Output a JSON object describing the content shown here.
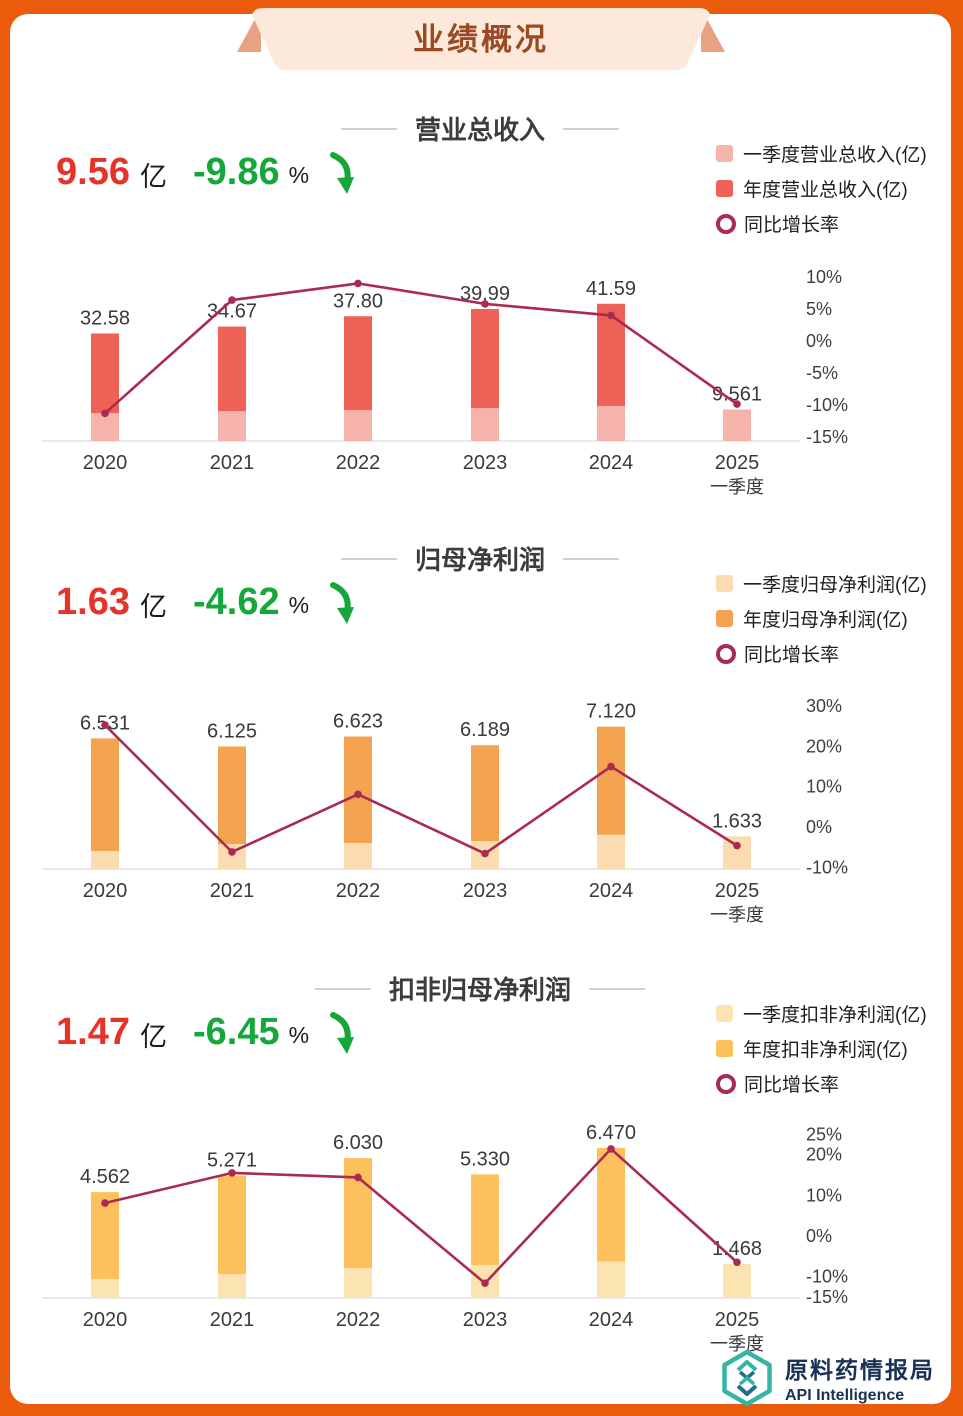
{
  "header": {
    "title": "业绩概况"
  },
  "charts": [
    {
      "title": "营业总收入",
      "stat": {
        "value": "9.56",
        "unit": "亿",
        "change": "-9.86",
        "percent_sign": "%",
        "direction": "down"
      },
      "legend": [
        {
          "label": "一季度营业总收入(亿)",
          "swatch": "#F6B3AB",
          "type": "square"
        },
        {
          "label": "年度营业总收入(亿)",
          "swatch": "#EE6156",
          "type": "square"
        },
        {
          "label": "同比增长率",
          "swatch": "#A92B52",
          "type": "circle"
        }
      ]
    },
    {
      "title": "归母净利润",
      "stat": {
        "value": "1.63",
        "unit": "亿",
        "change": "-4.62",
        "percent_sign": "%",
        "direction": "down"
      },
      "legend": [
        {
          "label": "一季度归母净利润(亿)",
          "swatch": "#FBDCB0",
          "type": "square"
        },
        {
          "label": "年度归母净利润(亿)",
          "swatch": "#F4A450",
          "type": "square"
        },
        {
          "label": "同比增长率",
          "swatch": "#A92B52",
          "type": "circle"
        }
      ]
    },
    {
      "title": "扣非归母净利润",
      "stat": {
        "value": "1.47",
        "unit": "亿",
        "change": "-6.45",
        "percent_sign": "%",
        "direction": "down"
      },
      "legend": [
        {
          "label": "一季度扣非净利润(亿)",
          "swatch": "#FCE3B2",
          "type": "square"
        },
        {
          "label": "年度扣非净利润(亿)",
          "swatch": "#FCC15C",
          "type": "square"
        },
        {
          "label": "同比增长率",
          "swatch": "#A92B52",
          "type": "circle"
        }
      ]
    }
  ],
  "chart_data": [
    {
      "type": "bar+line",
      "title": "营业总收入",
      "categories": [
        "2020",
        "2021",
        "2022",
        "2023",
        "2024",
        "2025"
      ],
      "last_category_sub_label": "一季度",
      "series": [
        {
          "name": "一季度营业总收入(亿)",
          "values": [
            8.42,
            9.05,
            9.35,
            9.95,
            10.61,
            9.561
          ],
          "color": "#F6B3AB"
        },
        {
          "name": "年度营业总收入(亿)",
          "values": [
            32.58,
            34.67,
            37.8,
            39.99,
            41.59,
            null
          ],
          "color": "#EE6156"
        },
        {
          "name": "同比增长率",
          "values": [
            -11.3,
            6.4,
            9.0,
            5.8,
            4.0,
            -9.86
          ],
          "unit": "%",
          "axis": "right",
          "color": "#A92B52"
        }
      ],
      "bar_labels": [
        "32.58",
        "34.67",
        "37.80",
        "39.99",
        "41.59",
        "9.561"
      ],
      "right_axis_ticks": [
        "10%",
        "5%",
        "0%",
        "-5%",
        "-10%",
        "-15%"
      ],
      "legend_position": "top-right",
      "grid": false
    },
    {
      "type": "bar+line",
      "title": "归母净利润",
      "categories": [
        "2020",
        "2021",
        "2022",
        "2023",
        "2024",
        "2025"
      ],
      "last_category_sub_label": "一季度",
      "series": [
        {
          "name": "一季度归母净利润(亿)",
          "values": [
            0.9,
            1.25,
            1.3,
            1.4,
            1.71,
            1.633
          ],
          "color": "#FBDCB0"
        },
        {
          "name": "年度归母净利润(亿)",
          "values": [
            6.531,
            6.125,
            6.623,
            6.189,
            7.12,
            null
          ],
          "color": "#F4A450"
        },
        {
          "name": "同比增长率",
          "values": [
            25.3,
            -6.2,
            8.1,
            -6.6,
            15.0,
            -4.62
          ],
          "unit": "%",
          "axis": "right",
          "color": "#A92B52"
        }
      ],
      "bar_labels": [
        "6.531",
        "6.125",
        "6.623",
        "6.189",
        "7.120",
        "1.633"
      ],
      "right_axis_ticks": [
        "30%",
        "20%",
        "10%",
        "0%",
        "-10%"
      ],
      "legend_position": "top-right",
      "grid": false
    },
    {
      "type": "bar+line",
      "title": "扣非归母净利润",
      "categories": [
        "2020",
        "2021",
        "2022",
        "2023",
        "2024",
        "2025"
      ],
      "last_category_sub_label": "一季度",
      "series": [
        {
          "name": "一季度扣非净利润(亿)",
          "values": [
            0.82,
            1.03,
            1.29,
            1.42,
            1.57,
            1.468
          ],
          "color": "#FCE3B2"
        },
        {
          "name": "年度扣非净利润(亿)",
          "values": [
            4.562,
            5.271,
            6.03,
            5.33,
            6.47,
            null
          ],
          "color": "#FCC15C"
        },
        {
          "name": "同比增长率",
          "values": [
            8.1,
            15.5,
            14.4,
            -11.6,
            21.4,
            -6.45
          ],
          "unit": "%",
          "axis": "right",
          "color": "#A92B52"
        }
      ],
      "bar_labels": [
        "4.562",
        "5.271",
        "6.030",
        "5.330",
        "6.470",
        "1.468"
      ],
      "right_axis_ticks": [
        "25%",
        "20%",
        "10%",
        "0%",
        "-10%",
        "-15%"
      ],
      "legend_position": "top-right",
      "grid": false
    }
  ],
  "footer": {
    "brand_cn": "原料药情报局",
    "brand_en": "API Intelligence"
  },
  "colors": {
    "frame_orange": "#EA5B0C",
    "ribbon_fill": "#FCE9DC",
    "ribbon_fold": "#E7A183",
    "stat_red": "#E5332A",
    "stat_green": "#16A73B",
    "growth_line": "#A92B52"
  }
}
